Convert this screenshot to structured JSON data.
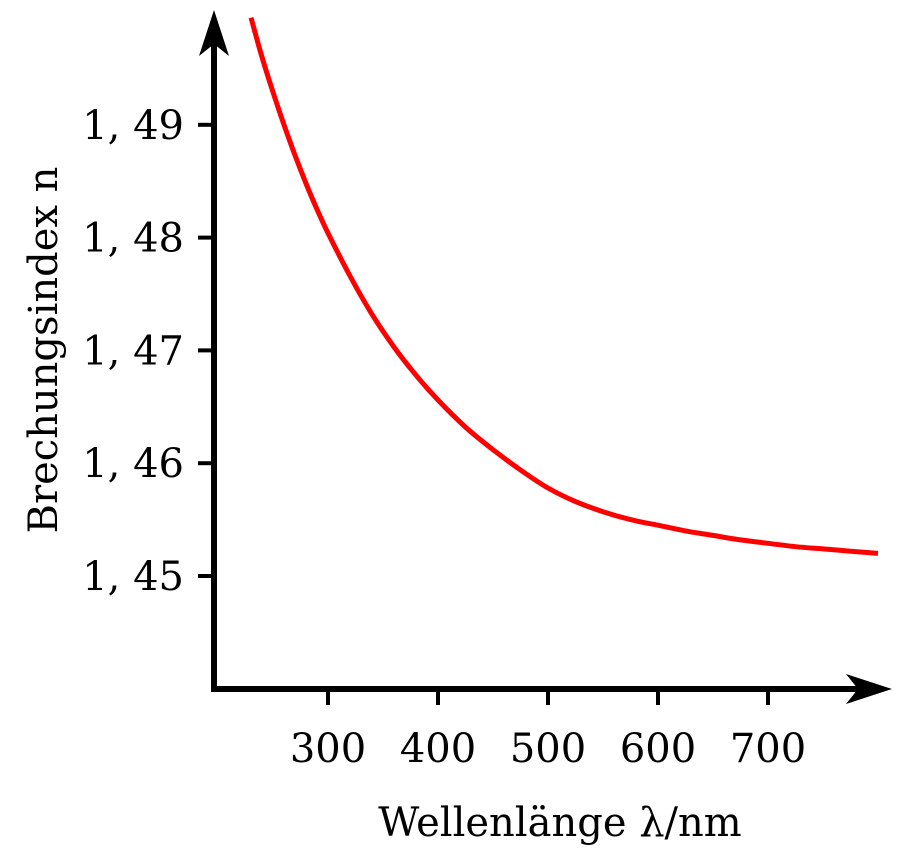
{
  "chart_data": {
    "type": "line",
    "title": "",
    "xlabel": "Wellenlänge λ/nm",
    "ylabel": "Brechungsindex n",
    "x_ticks": [
      300,
      400,
      500,
      600,
      700
    ],
    "x_tick_labels": [
      "300",
      "400",
      "500",
      "600",
      "700"
    ],
    "y_ticks": [
      1.45,
      1.46,
      1.47,
      1.48,
      1.49
    ],
    "y_tick_labels": [
      "1, 45",
      "1, 46",
      "1, 47",
      "1, 48",
      "1, 49"
    ],
    "xlim": [
      200,
      800
    ],
    "ylim": [
      1.44,
      1.5
    ],
    "grid": false,
    "series": [
      {
        "color": "#ff0000",
        "x": [
          230,
          240,
          250,
          260,
          270,
          280,
          290,
          300,
          320,
          340,
          360,
          380,
          400,
          425,
          450,
          475,
          500,
          525,
          550,
          575,
          600,
          625,
          650,
          675,
          700,
          725,
          750,
          775,
          800
        ],
        "y": [
          1.4995,
          1.496,
          1.4929,
          1.49,
          1.4873,
          1.4848,
          1.4825,
          1.4804,
          1.4766,
          1.4732,
          1.4703,
          1.4678,
          1.4656,
          1.4632,
          1.4612,
          1.4594,
          1.4578,
          1.4566,
          1.4557,
          1.455,
          1.4545,
          1.454,
          1.4536,
          1.4532,
          1.4529,
          1.4526,
          1.4524,
          1.4522,
          1.452
        ]
      }
    ]
  }
}
